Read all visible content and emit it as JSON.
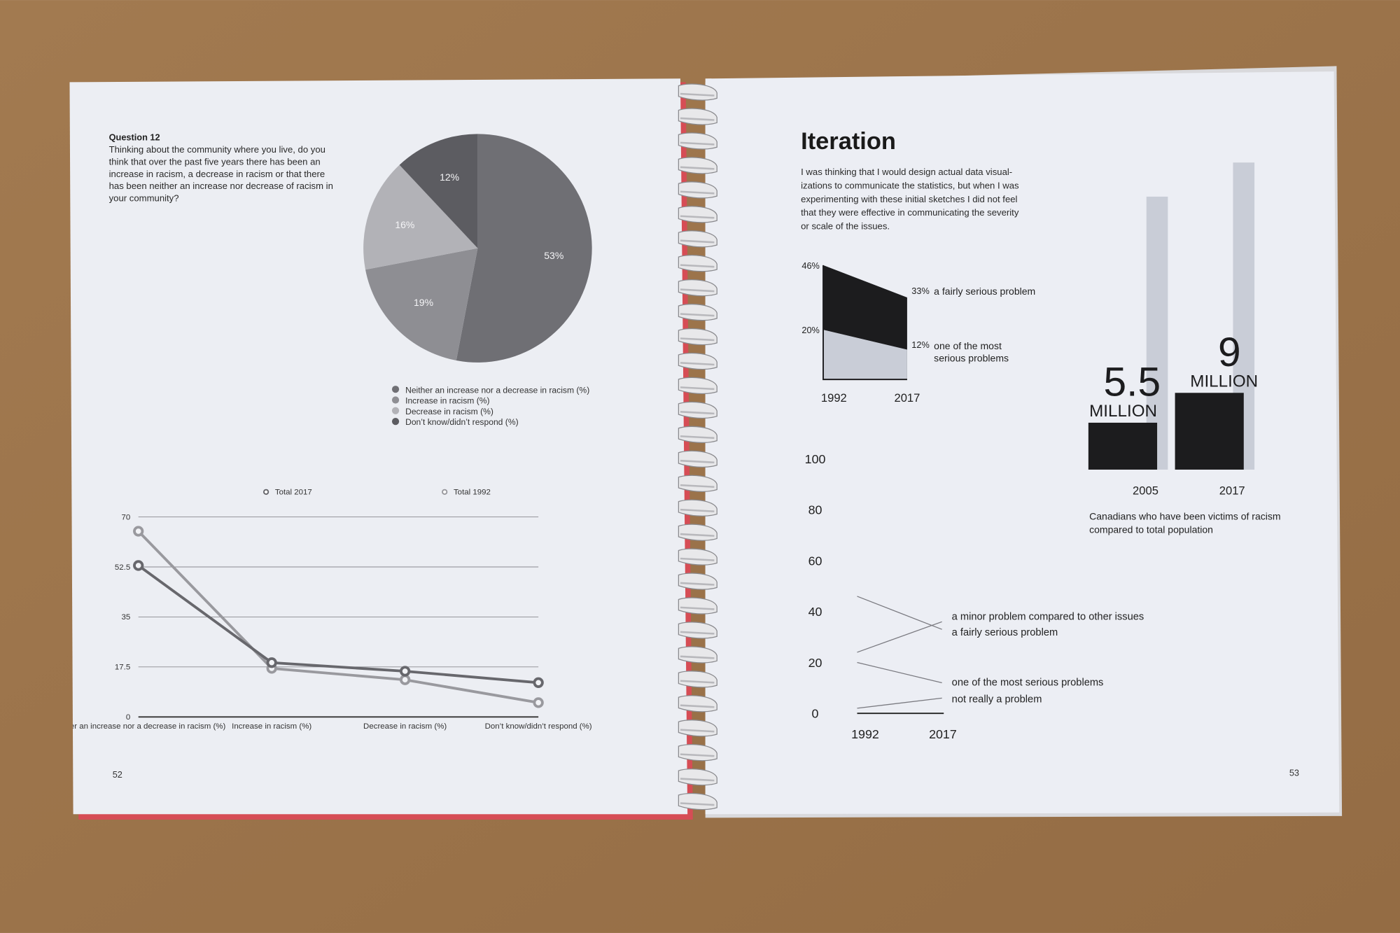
{
  "pages": {
    "left": {
      "heading": "Question 12",
      "question_lines": [
        "Thinking about the community where you live, do you",
        "think that over the past five years there has been an",
        "increase in racism, a decrease in racism or that there",
        "has been neither an increase nor decrease of racism in",
        "your community?"
      ],
      "page_number": "52"
    },
    "right": {
      "title": "Iteration",
      "paragraph_lines": [
        "I was thinking that I would design actual data visual-",
        "izations to communicate the statistics, but when I was",
        "experimenting with these initial sketches I did not feel",
        "that they were effective in communicating the severity",
        "or scale of the issues."
      ],
      "page_number": "53"
    }
  },
  "chart_data": [
    {
      "type": "pie",
      "categories": [
        "Neither an increase nor a decrease in racism (%)",
        "Increase in racism (%)",
        "Decrease in racism (%)",
        "Don’t know/didn’t respond (%)"
      ],
      "values": [
        53,
        19,
        16,
        12
      ],
      "value_labels": [
        "53%",
        "19%",
        "16%",
        "12%"
      ],
      "colors": [
        "#6f6f74",
        "#8e8e93",
        "#b2b2b7",
        "#5c5c61"
      ]
    },
    {
      "type": "line",
      "categories": [
        "Neither an increase nor a decrease in racism (%)",
        "Increase in racism (%)",
        "Decrease in racism (%)",
        "Don’t know/didn’t respond (%)"
      ],
      "series": [
        {
          "name": "Total 2017",
          "color": "#67676c",
          "values": [
            53,
            19,
            16,
            12
          ]
        },
        {
          "name": "Total 1992",
          "color": "#99999e",
          "values": [
            65,
            17,
            13,
            5
          ]
        }
      ],
      "ylim": [
        0,
        70
      ],
      "yticks": [
        0,
        17.5,
        35,
        52.5,
        70
      ],
      "grid": true
    },
    {
      "type": "area",
      "categories": [
        "1992",
        "2017"
      ],
      "series": [
        {
          "name": "a fairly serious problem",
          "color": "#1c1c1e",
          "values": [
            46,
            33
          ],
          "value_labels": [
            "46%",
            "33%"
          ]
        },
        {
          "name": "one of the most serious problems",
          "color": "#c9cdd7",
          "values": [
            20,
            12
          ],
          "value_labels": [
            "20%",
            "12%"
          ]
        }
      ]
    },
    {
      "type": "bar",
      "categories": [
        "2005",
        "2017"
      ],
      "unit_label": "MILLION",
      "caption_lines": [
        "Canadians who have been victims of racism",
        "compared to total population"
      ],
      "series": [
        {
          "color": "#c9cdd7",
          "values": [
            32,
            36
          ]
        },
        {
          "color": "#1c1c1e",
          "values": [
            5.5,
            9
          ]
        }
      ]
    },
    {
      "type": "slope",
      "categories": [
        "1992",
        "2017"
      ],
      "ylim": [
        0,
        100
      ],
      "yticks": [
        0,
        20,
        40,
        60,
        80,
        100
      ],
      "series": [
        {
          "name": "a minor problem compared to other issues",
          "color": "#7a7a80",
          "values": [
            24,
            36
          ]
        },
        {
          "name": "a fairly serious problem",
          "color": "#7a7a80",
          "values": [
            46,
            33
          ]
        },
        {
          "name": "one of the most serious problems",
          "color": "#7a7a80",
          "values": [
            20,
            12
          ]
        },
        {
          "name": "not really a problem",
          "color": "#7a7a80",
          "values": [
            2,
            6
          ]
        }
      ]
    }
  ]
}
